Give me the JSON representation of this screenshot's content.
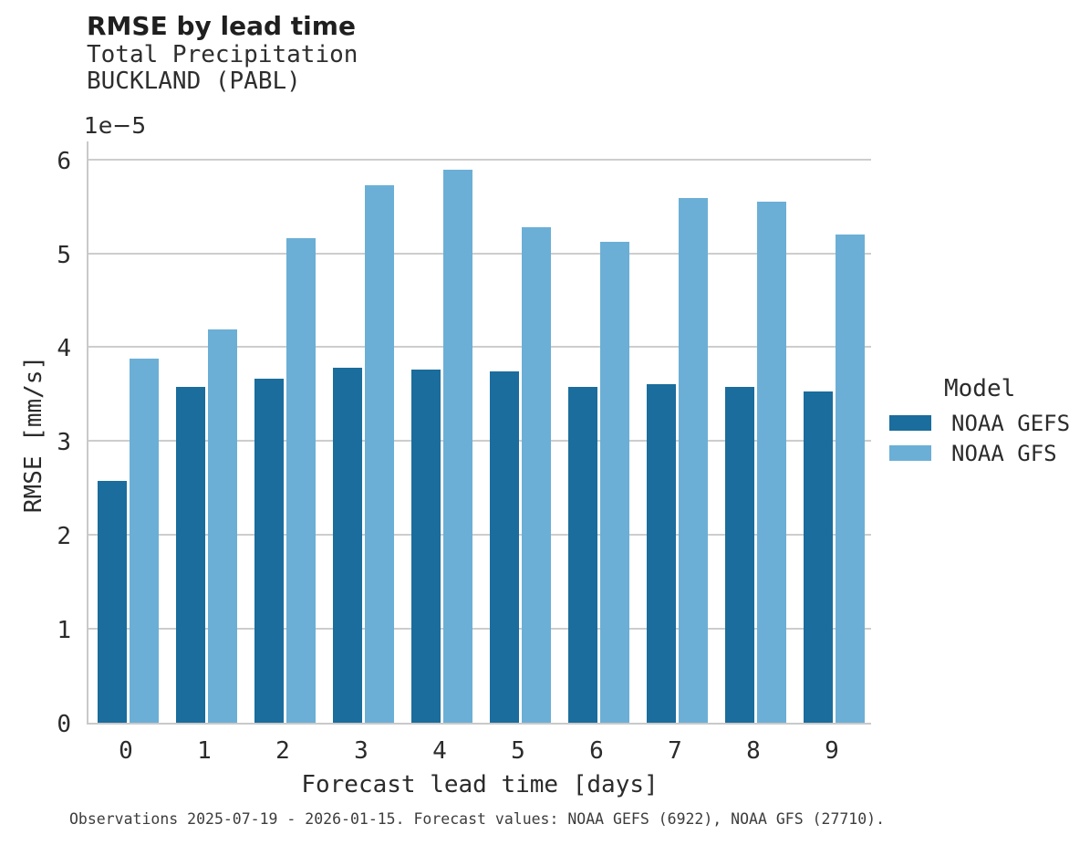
{
  "title": "RMSE by lead time",
  "footer": "Observations 2025-07-19 - 2026-01-15. Forecast values: NOAA GEFS (6922), NOAA GFS (27710).",
  "colors": {
    "gefs_dark_blue": "#1A6D9C",
    "gfs_light_blue": "#6BAFD6",
    "gridline": "#CDCDCD",
    "spine": "#C9C9C9",
    "text": "#2B2B2B"
  },
  "chart_data": {
    "type": "bar",
    "title": "RMSE by lead time",
    "subtitle": [
      "Total Precipitation",
      "BUCKLAND (PABL)"
    ],
    "categories": [
      "0",
      "1",
      "2",
      "3",
      "4",
      "5",
      "6",
      "7",
      "8",
      "9"
    ],
    "series": [
      {
        "name": "NOAA GEFS",
        "color": "#1A6D9C",
        "values": [
          2.58,
          3.58,
          3.66,
          3.78,
          3.76,
          3.74,
          3.58,
          3.61,
          3.58,
          3.53
        ]
      },
      {
        "name": "NOAA GFS",
        "color": "#6BAFD6",
        "values": [
          3.88,
          4.19,
          5.16,
          5.72,
          5.89,
          5.28,
          5.12,
          5.59,
          5.55,
          5.2
        ]
      }
    ],
    "value_units": "1e-5 mm/s",
    "offset_text": "1e−5",
    "xlabel": "Forecast lead time [days]",
    "ylabel": "RMSE [mm/s]",
    "ylim": [
      0,
      6.21
    ],
    "yticks": [
      0,
      1,
      2,
      3,
      4,
      5,
      6
    ],
    "grid": true,
    "legend_title": "Model",
    "legend_position": "right"
  }
}
